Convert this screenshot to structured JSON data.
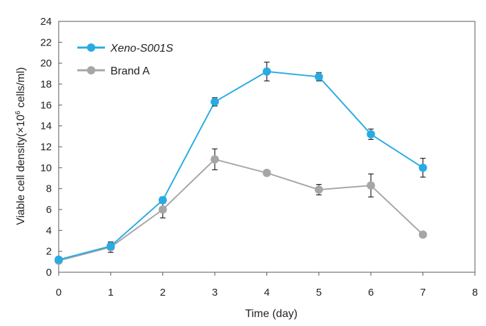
{
  "chart_data": {
    "type": "line",
    "xlabel": "Time (day)",
    "ylabel_main": "Viable cell density(×10",
    "ylabel_exp": "6",
    "ylabel_tail": " cells/ml)",
    "xlim": [
      0,
      8
    ],
    "ylim": [
      0,
      24
    ],
    "x_ticks": [
      "0",
      "1",
      "2",
      "3",
      "4",
      "5",
      "6",
      "7",
      "8"
    ],
    "y_ticks": [
      "0",
      "2",
      "4",
      "6",
      "8",
      "10",
      "12",
      "14",
      "16",
      "18",
      "20",
      "22",
      "24"
    ],
    "grid": false,
    "legend_position": "top-left",
    "series": [
      {
        "name": "Xeno-S001S",
        "color": "#29abe2",
        "italic": true,
        "x": [
          0,
          1,
          2,
          3,
          4,
          5,
          6,
          7
        ],
        "y": [
          1.2,
          2.5,
          6.9,
          16.3,
          19.2,
          18.7,
          13.2,
          10.0
        ],
        "err": [
          0.2,
          0.3,
          0.3,
          0.4,
          0.9,
          0.4,
          0.5,
          0.9
        ]
      },
      {
        "name": "Brand A",
        "color": "#a6a6a6",
        "italic": false,
        "x": [
          0,
          1,
          2,
          3,
          4,
          5,
          6,
          7
        ],
        "y": [
          1.1,
          2.4,
          6.0,
          10.8,
          9.5,
          7.9,
          8.3,
          3.6
        ],
        "err": [
          0.2,
          0.5,
          0.8,
          1.0,
          0.2,
          0.5,
          1.1,
          0.2
        ]
      }
    ]
  }
}
